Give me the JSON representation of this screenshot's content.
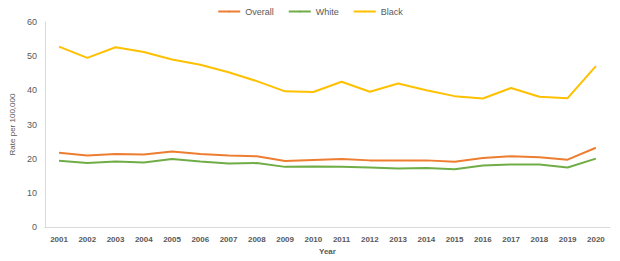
{
  "chart_data": {
    "type": "line",
    "x_label": "Year",
    "y_label": "Rate per 100,000",
    "categories": [
      "2001",
      "2002",
      "2003",
      "2004",
      "2005",
      "2006",
      "2007",
      "2008",
      "2009",
      "2010",
      "2011",
      "2012",
      "2013",
      "2014",
      "2015",
      "2016",
      "2017",
      "2018",
      "2019",
      "2020"
    ],
    "series": [
      {
        "name": "Overall",
        "color": "#ED7D31",
        "values": [
          21.7,
          20.9,
          21.4,
          21.2,
          22.1,
          21.4,
          20.9,
          20.7,
          19.3,
          19.6,
          19.9,
          19.5,
          19.5,
          19.5,
          19.1,
          20.2,
          20.7,
          20.4,
          19.7,
          23.2
        ]
      },
      {
        "name": "White",
        "color": "#70AD47",
        "values": [
          19.4,
          18.7,
          19.2,
          18.9,
          19.9,
          19.2,
          18.6,
          18.7,
          17.6,
          17.7,
          17.6,
          17.4,
          17.1,
          17.3,
          16.9,
          18.0,
          18.3,
          18.3,
          17.4,
          20.0
        ]
      },
      {
        "name": "Black",
        "color": "#FFC000",
        "values": [
          52.8,
          49.5,
          52.6,
          51.2,
          49.0,
          47.5,
          45.3,
          42.7,
          39.7,
          39.5,
          42.5,
          39.6,
          42.0,
          40.0,
          38.3,
          37.6,
          40.7,
          38.1,
          37.7,
          47.1
        ]
      }
    ],
    "ylim": [
      0,
      60
    ],
    "yticks": [
      0,
      10,
      20,
      30,
      40,
      50,
      60
    ],
    "grid": false,
    "legend": "top"
  }
}
